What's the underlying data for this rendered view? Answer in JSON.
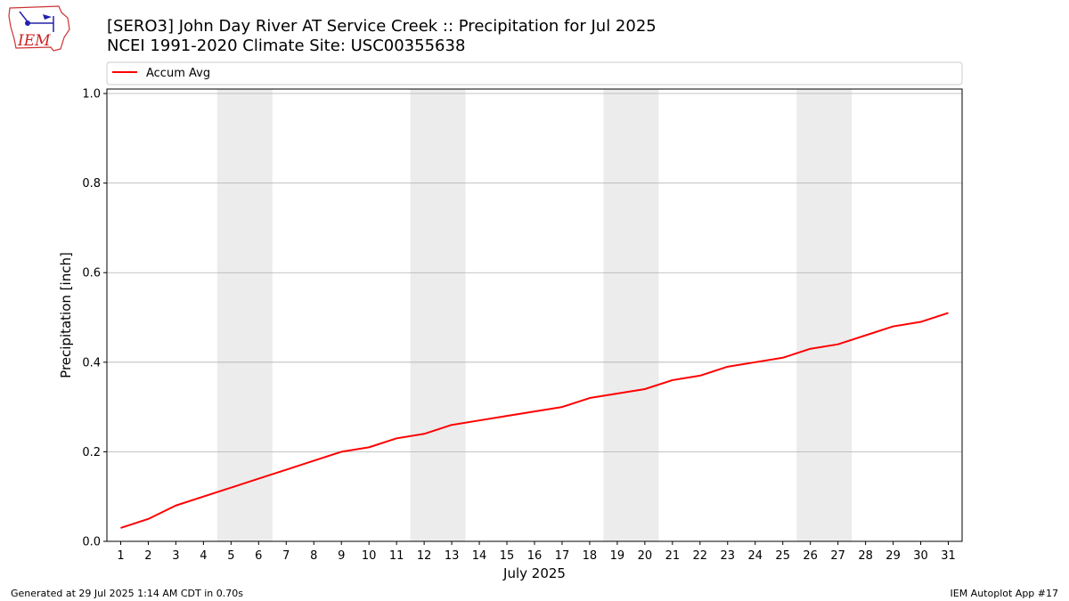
{
  "chart_data": {
    "type": "line",
    "title": "[SERO3] John Day River  AT Service Creek :: Precipitation for Jul 2025",
    "subtitle": "NCEI 1991-2020 Climate Site: USC00355638",
    "xlabel": "July 2025",
    "ylabel": "Precipitation [inch]",
    "ylim": [
      0,
      1.01
    ],
    "xlim": [
      0.5,
      31.5
    ],
    "grid": "horizontal",
    "legend_placement": "top",
    "x": [
      1,
      2,
      3,
      4,
      5,
      6,
      7,
      8,
      9,
      10,
      11,
      12,
      13,
      14,
      15,
      16,
      17,
      18,
      19,
      20,
      21,
      22,
      23,
      24,
      25,
      26,
      27,
      28,
      29,
      30,
      31
    ],
    "x_tick_labels": [
      "1",
      "2",
      "3",
      "4",
      "5",
      "6",
      "7",
      "8",
      "9",
      "10",
      "11",
      "12",
      "13",
      "14",
      "15",
      "16",
      "17",
      "18",
      "19",
      "20",
      "21",
      "22",
      "23",
      "24",
      "25",
      "26",
      "27",
      "28",
      "29",
      "30",
      "31"
    ],
    "y_ticks": [
      0.0,
      0.2,
      0.4,
      0.6,
      0.8,
      1.0
    ],
    "y_tick_labels": [
      "0.0",
      "0.2",
      "0.4",
      "0.6",
      "0.8",
      "1.0"
    ],
    "shaded_days": [
      [
        5,
        6
      ],
      [
        12,
        13
      ],
      [
        19,
        20
      ],
      [
        26,
        27
      ]
    ],
    "series": [
      {
        "name": "Accum Avg",
        "color": "#ff0000",
        "values": [
          0.03,
          0.05,
          0.08,
          0.1,
          0.12,
          0.14,
          0.16,
          0.18,
          0.2,
          0.21,
          0.23,
          0.24,
          0.26,
          0.27,
          0.28,
          0.29,
          0.3,
          0.32,
          0.33,
          0.34,
          0.36,
          0.37,
          0.39,
          0.4,
          0.41,
          0.43,
          0.44,
          0.46,
          0.48,
          0.49,
          0.51
        ]
      }
    ]
  },
  "logo": {
    "text": "IEM",
    "icon": "iem-iowa-logo-icon"
  },
  "footer": {
    "left": "Generated at 29 Jul 2025 1:14 AM CDT in 0.70s",
    "right": "IEM Autoplot App #17"
  },
  "colors": {
    "weekend_shade": "#ececec",
    "grid": "#b0b0b0",
    "line": "#ff0000"
  }
}
